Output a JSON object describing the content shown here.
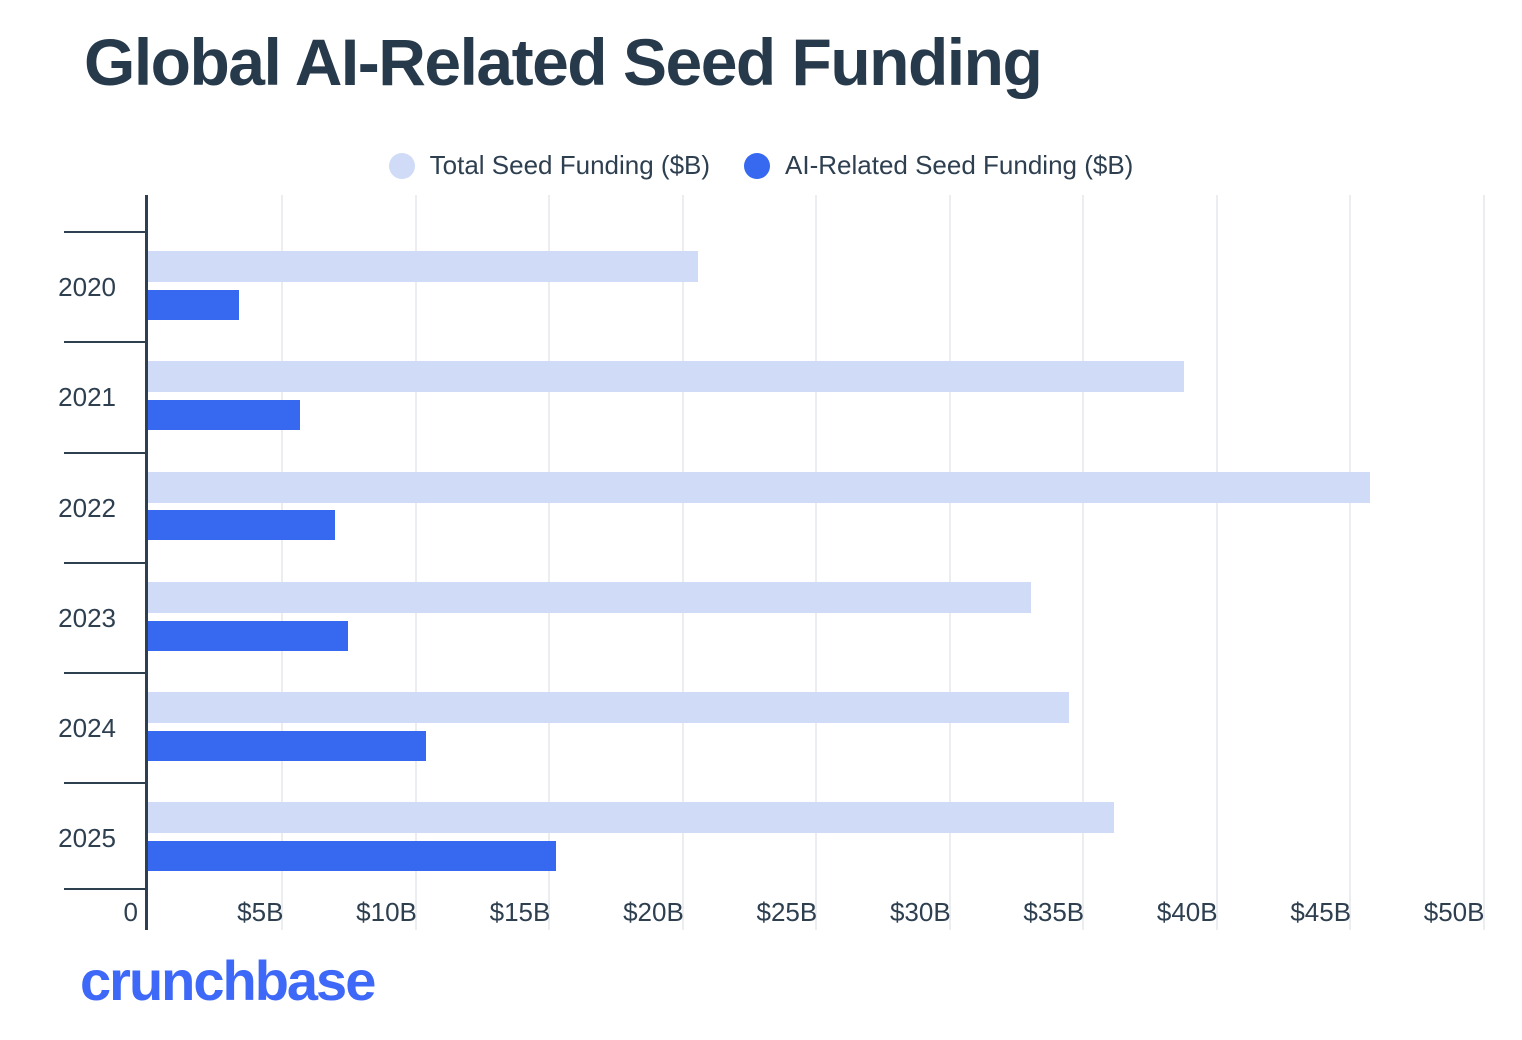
{
  "chart_data": {
    "type": "bar",
    "orientation": "horizontal",
    "title": "Global AI-Related Seed Funding",
    "categories": [
      "2020",
      "2021",
      "2022",
      "2023",
      "2024",
      "2025"
    ],
    "series": [
      {
        "name": "Total Seed Funding ($B)",
        "color": "#cfdbf7",
        "values": [
          20.6,
          38.8,
          45.8,
          33.1,
          34.5,
          36.2
        ]
      },
      {
        "name": "AI-Related Seed Funding ($B)",
        "color": "#3668f0",
        "values": [
          3.4,
          5.7,
          7.0,
          7.5,
          10.4,
          15.3
        ]
      }
    ],
    "x_tick_labels": [
      "0",
      "$5B",
      "$10B",
      "$15B",
      "$20B",
      "$25B",
      "$30B",
      "$35B",
      "$40B",
      "$45B",
      "$50B"
    ],
    "x_tick_values": [
      0,
      5,
      10,
      15,
      20,
      25,
      30,
      35,
      40,
      45,
      50
    ],
    "xlim": [
      0,
      51.1
    ],
    "grid": "vertical gridlines every $5B",
    "legend_position": "top",
    "colors": {
      "title_text": "#273a4b",
      "axis_text": "#2e3f50",
      "axis_line": "#2e3f50",
      "gridline": "#ebedf0"
    }
  },
  "footer": {
    "logo_text": "crunchbase",
    "logo_color": "#3e68f7"
  }
}
